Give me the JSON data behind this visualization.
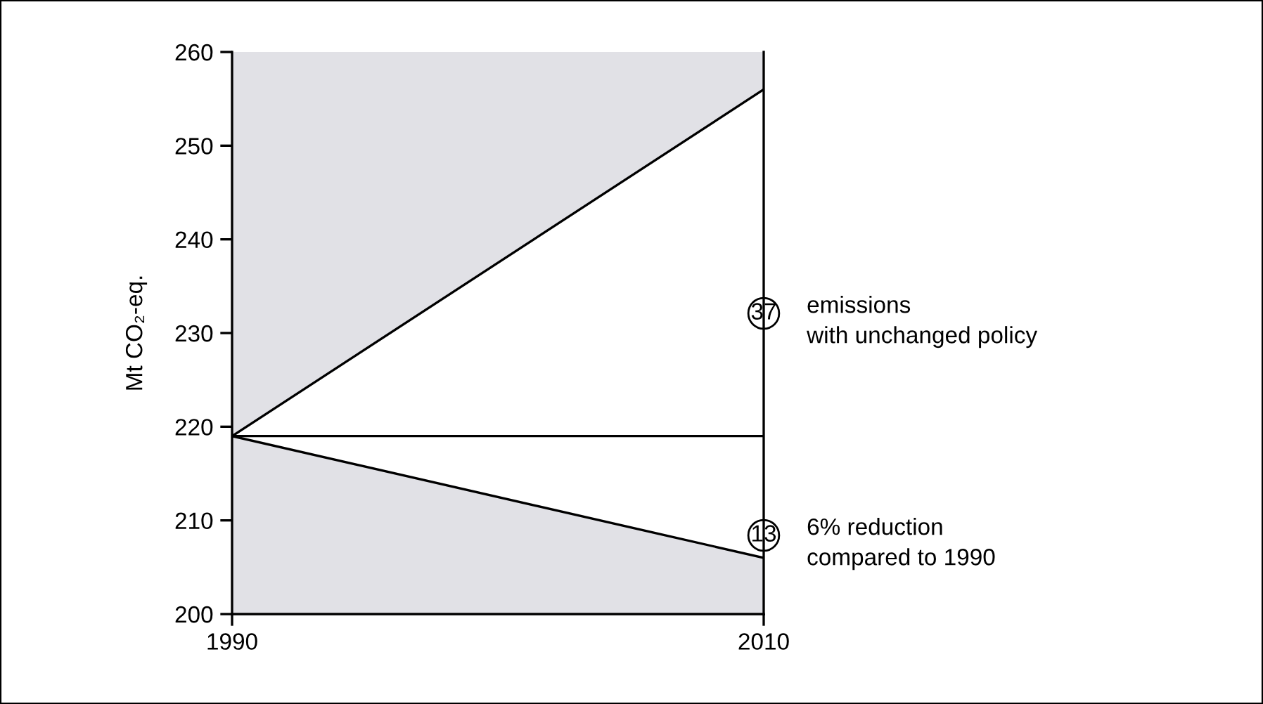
{
  "chart_data": {
    "type": "line",
    "ylabel": "Mt CO₂-eq.",
    "x": [
      1990,
      2010
    ],
    "series": [
      {
        "color": "#000000",
        "values": [
          219,
          256
        ],
        "lower": [
          219,
          206
        ],
        "upper": [
          219,
          256
        ]
      },
      {
        "color": "#000000",
        "values": [
          219,
          206
        ]
      }
    ],
    "xlim": [
      1990,
      2010
    ],
    "xticks": [
      1990,
      2010
    ],
    "ylim": [
      200,
      260
    ],
    "yticks": [
      200,
      210,
      220,
      230,
      240,
      250,
      260
    ],
    "bands": [
      {
        "axis": "y",
        "from": 200,
        "to": 260,
        "color": "#e1e1e6"
      }
    ],
    "ref_lines": [
      {
        "axis": "y",
        "value": 219,
        "color": "#000000"
      }
    ],
    "annotations": [
      "37",
      "emissions\nwith unchanged policy",
      "13",
      "6% reduction\ncompared to 1990"
    ],
    "grid": false,
    "legend": false,
    "marker": "none",
    "line_style": "solid"
  }
}
